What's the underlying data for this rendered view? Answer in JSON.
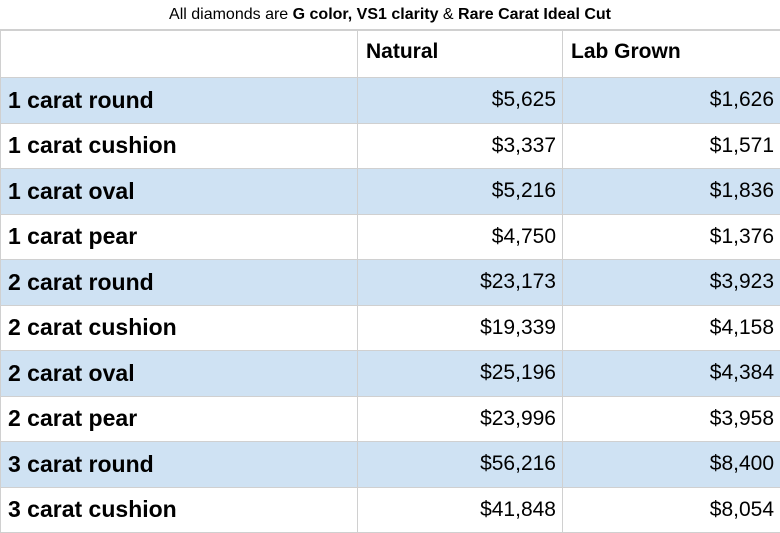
{
  "caption": {
    "prefix": "All diamonds are ",
    "bold": "G color, VS1 clarity",
    "middle": " & ",
    "bold2": "Rare Carat Ideal Cut"
  },
  "table": {
    "headers": [
      "",
      "Natural",
      "Lab Grown"
    ],
    "rows": [
      {
        "label": "1 carat round",
        "natural": "$5,625",
        "lab": "$1,626"
      },
      {
        "label": "1 carat cushion",
        "natural": "$3,337",
        "lab": "$1,571"
      },
      {
        "label": "1 carat oval",
        "natural": "$5,216",
        "lab": "$1,836"
      },
      {
        "label": "1 carat pear",
        "natural": "$4,750",
        "lab": "$1,376"
      },
      {
        "label": "2 carat round",
        "natural": "$23,173",
        "lab": "$3,923"
      },
      {
        "label": "2 carat cushion",
        "natural": "$19,339",
        "lab": "$4,158"
      },
      {
        "label": "2 carat oval",
        "natural": "$25,196",
        "lab": "$4,384"
      },
      {
        "label": "2 carat pear",
        "natural": "$23,996",
        "lab": "$3,958"
      },
      {
        "label": "3 carat round",
        "natural": "$56,216",
        "lab": "$8,400"
      },
      {
        "label": "3 carat cushion",
        "natural": "$41,848",
        "lab": "$8,054"
      }
    ]
  },
  "colors": {
    "row_shade": "#cfe2f3",
    "grid": "#d0d0d0"
  }
}
